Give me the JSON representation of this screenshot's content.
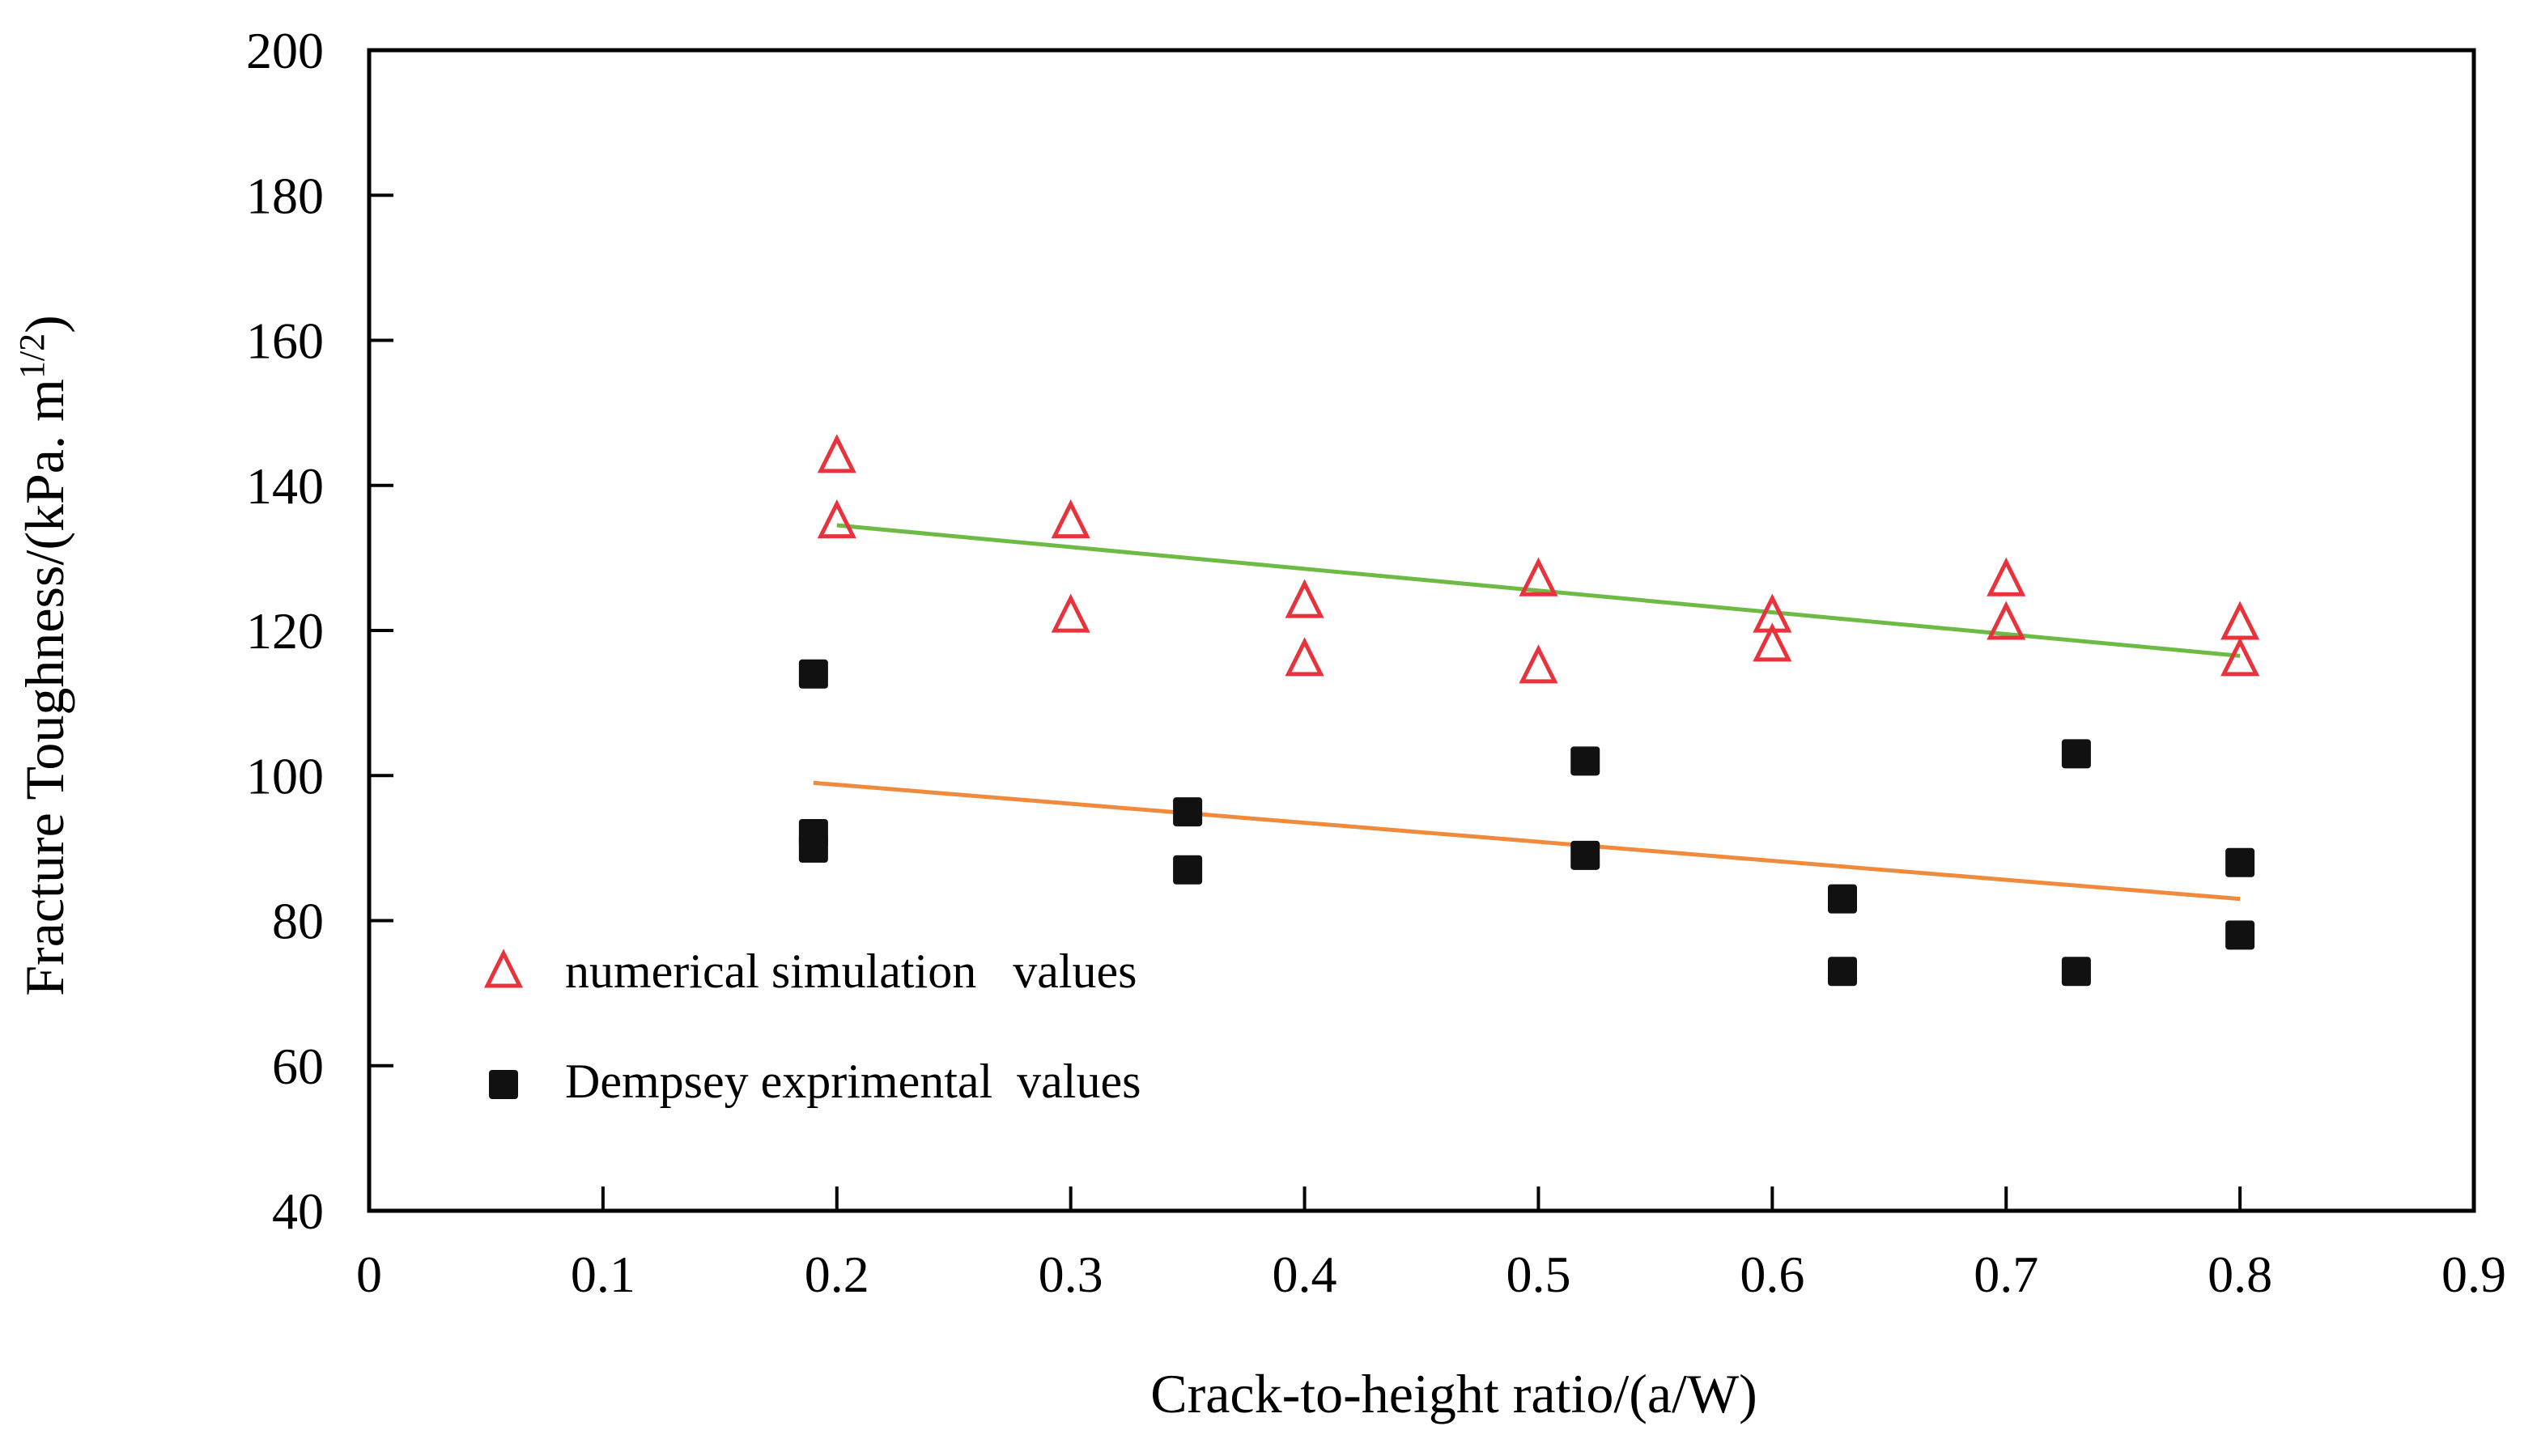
{
  "chart_data": {
    "type": "scatter",
    "title": "",
    "xlabel": "Crack-to-height ratio/(a/W)",
    "ylabel": "Fracture Toughness/(kPa. m",
    "ylabel_sup": "1/2",
    "ylabel_suffix": ")",
    "xlim": [
      0,
      0.9
    ],
    "ylim": [
      40,
      200
    ],
    "x_ticks": [
      0,
      0.1,
      0.2,
      0.3,
      0.4,
      0.5,
      0.6,
      0.7,
      0.8,
      0.9
    ],
    "x_tick_labels": [
      "0",
      "0.1",
      "0.2",
      "0.3",
      "0.4",
      "0.5",
      "0.6",
      "0.7",
      "0.8",
      "0.9"
    ],
    "y_ticks": [
      40,
      60,
      80,
      100,
      120,
      140,
      160,
      180,
      200
    ],
    "y_tick_labels": [
      "40",
      "60",
      "80",
      "100",
      "120",
      "140",
      "160",
      "180",
      "200"
    ],
    "grid": false,
    "legend_position": "bottom-left",
    "series": [
      {
        "name": "numerical simulation   values",
        "marker": "open-triangle",
        "color": "#e8323c",
        "points": [
          [
            0.2,
            144
          ],
          [
            0.2,
            135
          ],
          [
            0.3,
            135
          ],
          [
            0.3,
            122
          ],
          [
            0.4,
            124
          ],
          [
            0.4,
            116
          ],
          [
            0.5,
            127
          ],
          [
            0.5,
            115
          ],
          [
            0.6,
            122
          ],
          [
            0.6,
            118
          ],
          [
            0.7,
            127
          ],
          [
            0.7,
            121
          ],
          [
            0.8,
            121
          ],
          [
            0.8,
            116
          ]
        ]
      },
      {
        "name": "Dempsey exprimental  values",
        "marker": "filled-square",
        "color": "#111111",
        "points": [
          [
            0.19,
            114
          ],
          [
            0.19,
            92
          ],
          [
            0.19,
            90
          ],
          [
            0.35,
            95
          ],
          [
            0.35,
            87
          ],
          [
            0.52,
            102
          ],
          [
            0.52,
            89
          ],
          [
            0.63,
            83
          ],
          [
            0.63,
            73
          ],
          [
            0.73,
            103
          ],
          [
            0.73,
            73
          ],
          [
            0.8,
            88
          ],
          [
            0.8,
            78
          ]
        ]
      }
    ],
    "trendlines": [
      {
        "series": "numerical simulation   values",
        "color": "#6dbb45",
        "from": [
          0.2,
          134.5
        ],
        "to": [
          0.8,
          116.5
        ]
      },
      {
        "series": "Dempsey exprimental  values",
        "color": "#f08a3c",
        "from": [
          0.19,
          99
        ],
        "to": [
          0.8,
          83
        ]
      }
    ]
  }
}
